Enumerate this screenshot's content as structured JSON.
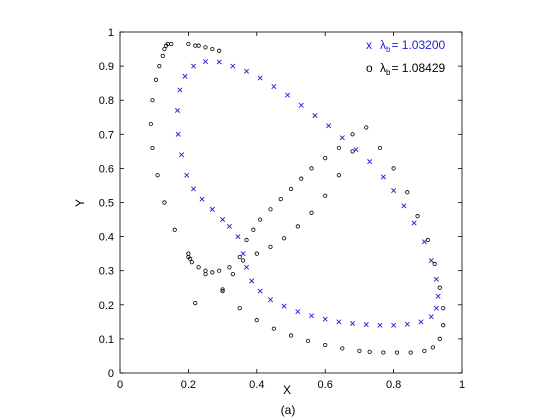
{
  "chart_data": {
    "type": "scatter",
    "title": "",
    "xlabel": "X",
    "ylabel": "Y",
    "caption": "(a)",
    "xlim": [
      0,
      1
    ],
    "ylim": [
      0,
      1
    ],
    "xticks": [
      "0",
      "0.2",
      "0.4",
      "0.6",
      "0.8",
      "1"
    ],
    "yticks": [
      "0",
      "0.1",
      "0.2",
      "0.3",
      "0.4",
      "0.5",
      "0.6",
      "0.7",
      "0.8",
      "0.9",
      "1"
    ],
    "grid": false,
    "legend": "top-right",
    "series": [
      {
        "marker": "x",
        "legend_symbol": "x",
        "legend_main": "λ",
        "legend_sub": "b",
        "legend_value": "= 1.03200",
        "color": "#1f1fd6",
        "x": [
          0.17,
          0.168,
          0.175,
          0.19,
          0.215,
          0.25,
          0.29,
          0.33,
          0.37,
          0.41,
          0.45,
          0.49,
          0.53,
          0.57,
          0.61,
          0.65,
          0.69,
          0.73,
          0.77,
          0.8,
          0.83,
          0.86,
          0.89,
          0.91,
          0.925,
          0.93,
          0.925,
          0.91,
          0.88,
          0.84,
          0.8,
          0.76,
          0.72,
          0.68,
          0.64,
          0.6,
          0.56,
          0.52,
          0.48,
          0.44,
          0.41,
          0.385,
          0.37,
          0.36,
          0.345,
          0.32,
          0.3,
          0.27,
          0.24,
          0.215,
          0.195,
          0.18
        ],
        "y": [
          0.7,
          0.77,
          0.83,
          0.87,
          0.9,
          0.913,
          0.912,
          0.9,
          0.885,
          0.865,
          0.84,
          0.815,
          0.785,
          0.755,
          0.725,
          0.69,
          0.655,
          0.62,
          0.575,
          0.535,
          0.49,
          0.44,
          0.385,
          0.33,
          0.275,
          0.225,
          0.19,
          0.165,
          0.15,
          0.143,
          0.14,
          0.14,
          0.142,
          0.145,
          0.15,
          0.158,
          0.168,
          0.18,
          0.196,
          0.215,
          0.24,
          0.27,
          0.31,
          0.35,
          0.4,
          0.43,
          0.45,
          0.48,
          0.51,
          0.54,
          0.58,
          0.64
        ]
      },
      {
        "marker": "o",
        "legend_symbol": "o",
        "legend_main": "λ",
        "legend_sub": "b",
        "legend_value": "= 1.08429",
        "color": "#000000",
        "x": [
          0.2,
          0.205,
          0.21,
          0.23,
          0.25,
          0.27,
          0.29,
          0.32,
          0.36,
          0.4,
          0.44,
          0.48,
          0.52,
          0.56,
          0.6,
          0.64,
          0.68,
          0.72,
          0.76,
          0.8,
          0.84,
          0.87,
          0.9,
          0.92,
          0.935,
          0.945,
          0.945,
          0.935,
          0.915,
          0.89,
          0.85,
          0.81,
          0.77,
          0.73,
          0.7,
          0.65,
          0.6,
          0.55,
          0.5,
          0.45,
          0.4,
          0.35,
          0.3,
          0.25,
          0.2,
          0.16,
          0.13,
          0.11,
          0.095,
          0.09,
          0.095,
          0.105,
          0.115,
          0.125,
          0.13,
          0.135,
          0.14,
          0.15,
          0.2,
          0.22,
          0.23,
          0.25,
          0.27,
          0.29,
          0.22,
          0.3,
          0.33,
          0.35,
          0.37,
          0.39,
          0.41,
          0.44,
          0.47,
          0.5,
          0.53,
          0.56,
          0.6,
          0.64,
          0.68
        ],
        "y": [
          0.34,
          0.335,
          0.325,
          0.31,
          0.3,
          0.295,
          0.3,
          0.31,
          0.33,
          0.35,
          0.37,
          0.395,
          0.43,
          0.47,
          0.52,
          0.58,
          0.65,
          0.72,
          0.66,
          0.6,
          0.53,
          0.46,
          0.39,
          0.32,
          0.25,
          0.19,
          0.14,
          0.1,
          0.075,
          0.065,
          0.06,
          0.06,
          0.06,
          0.062,
          0.065,
          0.072,
          0.082,
          0.094,
          0.11,
          0.13,
          0.155,
          0.19,
          0.24,
          0.29,
          0.35,
          0.42,
          0.5,
          0.58,
          0.66,
          0.73,
          0.8,
          0.86,
          0.9,
          0.93,
          0.95,
          0.96,
          0.965,
          0.965,
          0.965,
          0.96,
          0.96,
          0.955,
          0.95,
          0.945,
          0.205,
          0.245,
          0.29,
          0.34,
          0.39,
          0.42,
          0.45,
          0.48,
          0.51,
          0.54,
          0.57,
          0.6,
          0.63,
          0.66,
          0.7
        ]
      }
    ]
  }
}
